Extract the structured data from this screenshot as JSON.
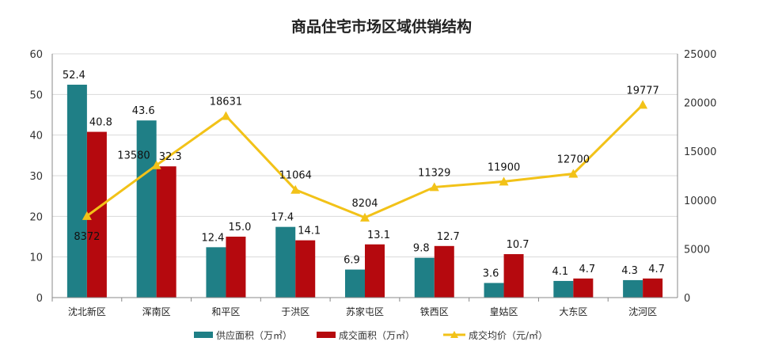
{
  "chart_data": {
    "type": "bar+line",
    "title": "商品住宅市场区域供销结构",
    "categories": [
      "沈北新区",
      "浑南区",
      "和平区",
      "于洪区",
      "苏家屯区",
      "铁西区",
      "皇姑区",
      "大东区",
      "沈河区"
    ],
    "series": [
      {
        "name": "供应面积（万㎡）",
        "type": "bar",
        "axis": "left",
        "color": "#1f7f86",
        "values": [
          52.4,
          43.6,
          12.4,
          17.4,
          6.9,
          9.8,
          3.6,
          4.1,
          4.3
        ]
      },
      {
        "name": "成交面积（万㎡）",
        "type": "bar",
        "axis": "left",
        "color": "#b5090e",
        "values": [
          40.8,
          32.3,
          15.0,
          14.1,
          13.1,
          12.7,
          10.7,
          4.7,
          4.7
        ]
      },
      {
        "name": "成交均价（元/㎡）",
        "type": "line",
        "axis": "right",
        "color": "#f2c218",
        "values": [
          8372,
          13580,
          18631,
          11064,
          8204,
          11329,
          11900,
          12700,
          19777
        ]
      }
    ],
    "ylim_left": [
      0,
      60
    ],
    "yticks_left": [
      0,
      10,
      20,
      30,
      40,
      50,
      60
    ],
    "ylim_right": [
      0,
      25000
    ],
    "yticks_right": [
      0,
      5000,
      10000,
      15000,
      20000,
      25000
    ],
    "grid": true,
    "legend": "bottom"
  }
}
